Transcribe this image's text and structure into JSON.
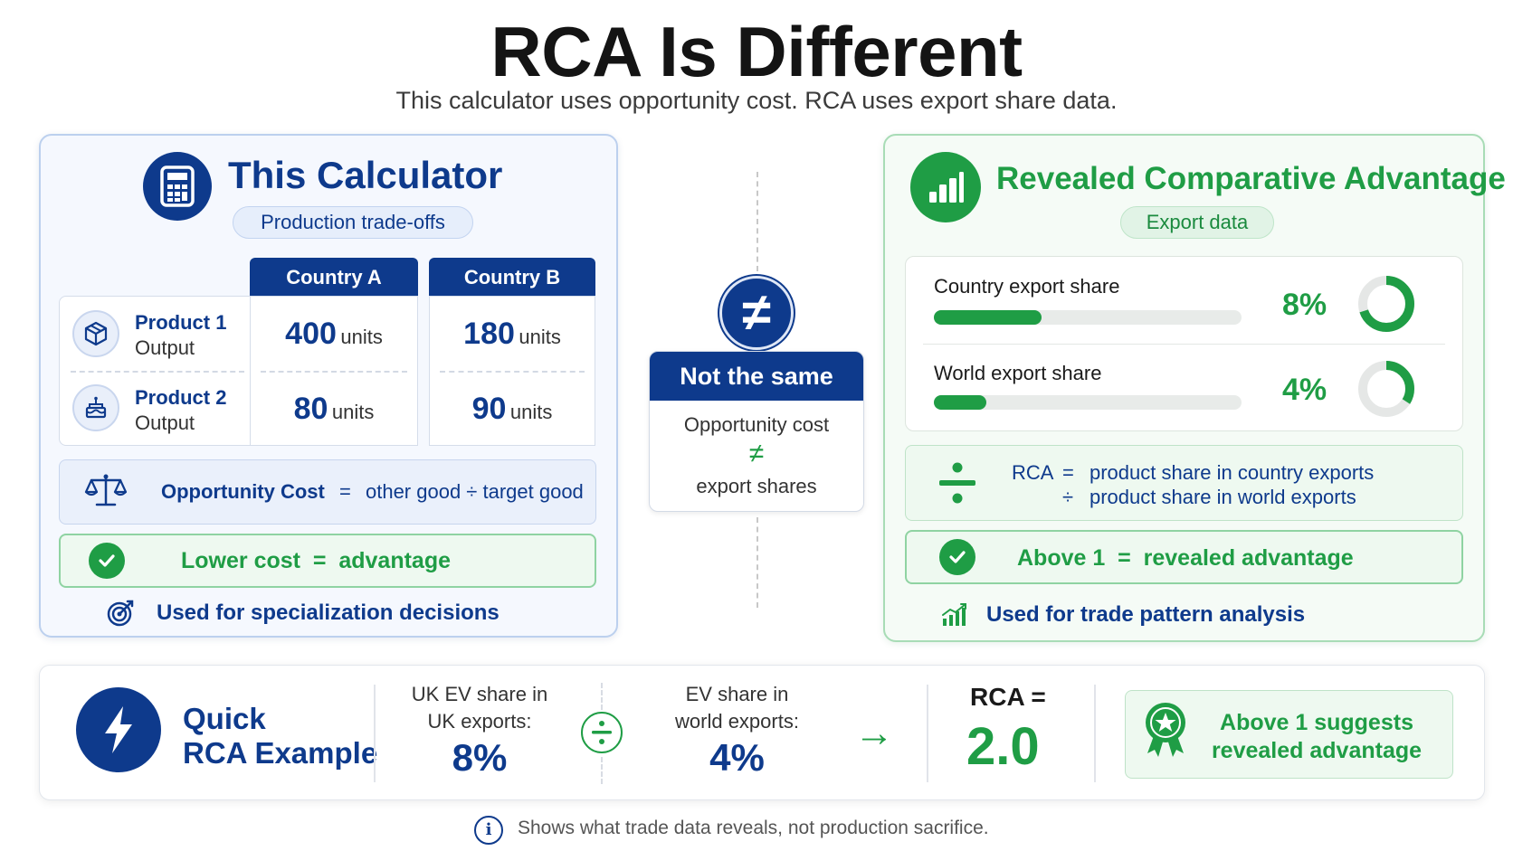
{
  "header": {
    "title": "RCA Is Different",
    "subtitle": "This calculator uses opportunity cost. RCA uses export share data."
  },
  "left_panel": {
    "title": "This Calculator",
    "tag": "Production trade-offs",
    "columns": [
      "Country A",
      "Country B"
    ],
    "rows": [
      {
        "title": "Product 1",
        "subtitle": "Output",
        "a_value": "400",
        "a_unit": "units",
        "b_value": "180",
        "b_unit": "units"
      },
      {
        "title": "Product 2",
        "subtitle": "Output",
        "a_value": "80",
        "a_unit": "units",
        "b_value": "90",
        "b_unit": "units"
      }
    ],
    "formula_label": "Opportunity Cost",
    "formula_eq": "=",
    "formula_rhs": "other good ÷ target good",
    "advantage": "Lower cost  =  advantage",
    "footer": "Used for specialization decisions"
  },
  "middle": {
    "symbol": "≠",
    "heading": "Not the same",
    "line1": "Opportunity cost",
    "neq": "≠",
    "line2": "export shares"
  },
  "right_panel": {
    "title": "Revealed Comparative Advantage",
    "tag": "Export data",
    "shares": [
      {
        "label": "Country export share",
        "value": "8%",
        "fraction": 0.35
      },
      {
        "label": "World export share",
        "value": "4%",
        "fraction": 0.17
      }
    ],
    "rca_label": "RCA",
    "rca_eq": "=",
    "rca_line1": "product share in country exports",
    "rca_div": "÷",
    "rca_line2": "product share in world exports",
    "advantage": "Above 1  =  revealed advantage",
    "footer": "Used for trade pattern analysis"
  },
  "quick_example": {
    "title_line1": "Quick",
    "title_line2": "RCA Example",
    "uk_label_line1": "UK EV share in",
    "uk_label_line2": "UK exports:",
    "uk_value": "8%",
    "world_label_line1": "EV share in",
    "world_label_line2": "world exports:",
    "world_value": "4%",
    "arrow": "→",
    "rca_label": "RCA =",
    "rca_value": "2.0",
    "suggestion_line1": "Above 1 suggests",
    "suggestion_line2": "revealed advantage"
  },
  "note": {
    "icon": "i",
    "text": "Shows what trade data reveals, not production sacrifice."
  },
  "colors": {
    "navy": "#0e3a8c",
    "green": "#1f9d45"
  }
}
